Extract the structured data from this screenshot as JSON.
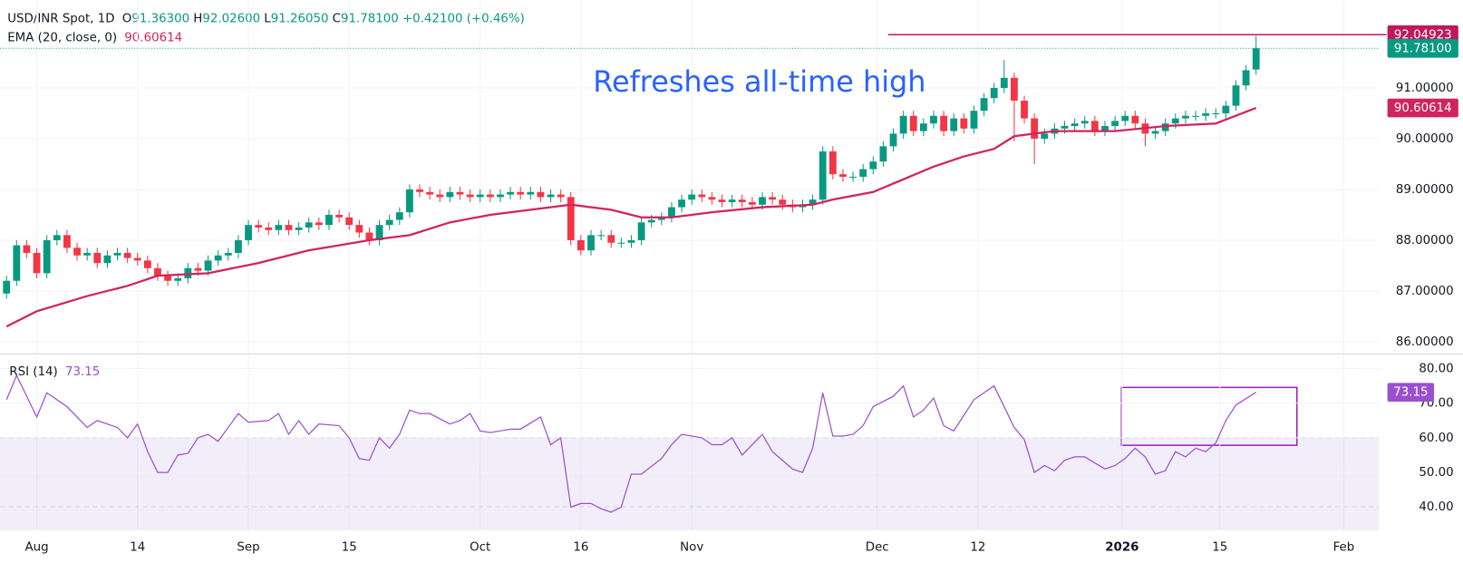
{
  "chart_data": [
    {
      "type": "candlestick",
      "title": "USD/INR Spot, 1D",
      "ohlc_labels": [
        {
          "key": "O",
          "value": "91.36300"
        },
        {
          "key": "H",
          "value": "92.02600"
        },
        {
          "key": "L",
          "value": "91.26050"
        },
        {
          "key": "C",
          "value": "91.78100"
        }
      ],
      "change": "+0.42100 (+0.46%)",
      "up_color": "#089981",
      "down_color": "#f23645",
      "open": [
        86.95,
        87.2,
        87.9,
        87.75,
        87.35,
        88.0,
        88.1,
        87.85,
        87.7,
        87.75,
        87.55,
        87.7,
        87.75,
        87.65,
        87.6,
        87.45,
        87.3,
        87.2,
        87.25,
        87.45,
        87.4,
        87.6,
        87.7,
        87.75,
        88.0,
        88.3,
        88.25,
        88.2,
        88.3,
        88.2,
        88.25,
        88.35,
        88.3,
        88.5,
        88.45,
        88.3,
        88.15,
        88.0,
        88.3,
        88.4,
        88.55,
        89.0,
        88.95,
        88.9,
        88.85,
        88.95,
        88.9,
        88.85,
        88.9,
        88.85,
        88.9,
        88.95,
        88.9,
        88.95,
        88.85,
        88.9,
        88.85,
        88.0,
        87.8,
        88.1,
        88.1,
        87.95,
        87.95,
        88.0,
        88.35,
        88.4,
        88.45,
        88.65,
        88.8,
        88.9,
        88.85,
        88.8,
        88.75,
        88.8,
        88.75,
        88.7,
        88.85,
        88.8,
        88.7,
        88.65,
        88.7,
        88.8,
        89.75,
        89.3,
        89.25,
        89.25,
        89.4,
        89.55,
        89.85,
        90.1,
        90.45,
        90.15,
        90.3,
        90.45,
        90.15,
        90.4,
        90.2,
        90.55,
        90.8,
        91.0,
        91.2,
        90.75,
        90.4,
        90.0,
        90.1,
        90.2,
        90.25,
        90.3,
        90.35,
        90.15,
        90.25,
        90.35,
        90.45,
        90.3,
        90.1,
        90.15,
        90.3,
        90.4,
        90.45,
        90.45,
        90.5,
        90.5,
        90.65,
        91.05,
        91.363
      ],
      "high": [
        87.3,
        88.0,
        88.0,
        87.85,
        88.1,
        88.2,
        88.2,
        87.95,
        87.85,
        87.85,
        87.8,
        87.85,
        87.85,
        87.75,
        87.7,
        87.55,
        87.4,
        87.35,
        87.55,
        87.55,
        87.7,
        87.8,
        87.85,
        88.1,
        88.4,
        88.4,
        88.35,
        88.4,
        88.4,
        88.35,
        88.45,
        88.45,
        88.6,
        88.6,
        88.55,
        88.4,
        88.25,
        88.4,
        88.5,
        88.65,
        89.1,
        89.1,
        89.05,
        89.0,
        89.05,
        89.05,
        89.0,
        89.0,
        89.0,
        89.0,
        89.05,
        89.05,
        89.05,
        89.05,
        89.0,
        89.0,
        88.95,
        88.1,
        88.2,
        88.2,
        88.2,
        88.05,
        88.1,
        88.45,
        88.5,
        88.55,
        88.75,
        88.9,
        89.0,
        89.0,
        88.95,
        88.9,
        88.9,
        88.9,
        88.85,
        88.95,
        88.95,
        88.9,
        88.8,
        88.8,
        88.9,
        89.85,
        89.85,
        89.4,
        89.35,
        89.5,
        89.65,
        89.95,
        90.2,
        90.55,
        90.55,
        90.4,
        90.55,
        90.55,
        90.5,
        90.5,
        90.65,
        90.9,
        91.1,
        91.55,
        91.3,
        90.85,
        90.5,
        90.2,
        90.3,
        90.35,
        90.4,
        90.45,
        90.45,
        90.35,
        90.45,
        90.55,
        90.55,
        90.4,
        90.25,
        90.4,
        90.5,
        90.55,
        90.55,
        90.6,
        90.6,
        90.75,
        91.15,
        91.45,
        92.026
      ],
      "low": [
        86.85,
        87.1,
        87.65,
        87.25,
        87.25,
        87.9,
        87.75,
        87.6,
        87.6,
        87.45,
        87.45,
        87.6,
        87.55,
        87.5,
        87.35,
        87.2,
        87.1,
        87.1,
        87.15,
        87.3,
        87.3,
        87.5,
        87.6,
        87.65,
        87.9,
        88.15,
        88.1,
        88.1,
        88.1,
        88.1,
        88.15,
        88.2,
        88.2,
        88.35,
        88.2,
        88.05,
        87.9,
        87.9,
        88.2,
        88.3,
        88.45,
        88.85,
        88.8,
        88.75,
        88.75,
        88.8,
        88.75,
        88.75,
        88.75,
        88.75,
        88.8,
        88.8,
        88.8,
        88.75,
        88.75,
        88.75,
        87.9,
        87.7,
        87.7,
        88.0,
        87.85,
        87.85,
        87.85,
        87.9,
        88.25,
        88.3,
        88.35,
        88.55,
        88.7,
        88.75,
        88.7,
        88.65,
        88.65,
        88.65,
        88.6,
        88.6,
        88.7,
        88.6,
        88.55,
        88.55,
        88.6,
        88.7,
        89.2,
        89.15,
        89.15,
        89.15,
        89.3,
        89.45,
        89.75,
        90.0,
        90.05,
        90.05,
        90.2,
        90.05,
        90.05,
        90.1,
        90.1,
        90.45,
        90.7,
        90.9,
        89.95,
        90.3,
        89.5,
        89.9,
        90.0,
        90.1,
        90.15,
        90.2,
        90.05,
        90.05,
        90.15,
        90.25,
        90.2,
        89.85,
        90.0,
        90.05,
        90.2,
        90.3,
        90.35,
        90.35,
        90.4,
        90.4,
        90.55,
        90.95,
        91.2605
      ],
      "close": [
        87.2,
        87.9,
        87.75,
        87.35,
        88.0,
        88.1,
        87.85,
        87.7,
        87.75,
        87.55,
        87.7,
        87.75,
        87.65,
        87.6,
        87.45,
        87.3,
        87.2,
        87.25,
        87.45,
        87.4,
        87.6,
        87.7,
        87.75,
        88.0,
        88.3,
        88.25,
        88.2,
        88.3,
        88.2,
        88.25,
        88.35,
        88.3,
        88.5,
        88.45,
        88.3,
        88.15,
        88.0,
        88.3,
        88.4,
        88.55,
        89.0,
        88.95,
        88.9,
        88.85,
        88.95,
        88.9,
        88.85,
        88.9,
        88.85,
        88.9,
        88.95,
        88.9,
        88.95,
        88.85,
        88.9,
        88.85,
        88.0,
        87.8,
        88.1,
        88.1,
        87.95,
        87.95,
        88.0,
        88.35,
        88.4,
        88.45,
        88.65,
        88.8,
        88.9,
        88.85,
        88.8,
        88.75,
        88.8,
        88.75,
        88.7,
        88.85,
        88.8,
        88.7,
        88.65,
        88.7,
        88.8,
        89.75,
        89.3,
        89.25,
        89.25,
        89.4,
        89.55,
        89.85,
        90.1,
        90.45,
        90.15,
        90.3,
        90.45,
        90.15,
        90.4,
        90.2,
        90.55,
        90.8,
        91.0,
        91.2,
        90.75,
        90.4,
        90.0,
        90.1,
        90.2,
        90.25,
        90.3,
        90.35,
        90.15,
        90.25,
        90.35,
        90.45,
        90.3,
        90.1,
        90.15,
        90.3,
        90.4,
        90.45,
        90.45,
        90.5,
        90.5,
        90.65,
        91.05,
        91.35,
        91.781
      ],
      "indicator": {
        "name": "EMA (20, close, 0)",
        "value_label": "90.60614",
        "color": "#d0245e",
        "x": [
          0,
          3,
          8,
          12,
          15,
          20,
          25,
          30,
          36,
          40,
          44,
          48,
          52,
          56,
          60,
          63,
          66,
          70,
          75,
          80,
          82,
          86,
          89,
          92,
          95,
          98,
          100,
          104,
          110,
          115,
          120,
          124
        ],
        "values": [
          86.3,
          86.6,
          86.9,
          87.1,
          87.3,
          87.35,
          87.55,
          87.8,
          88.0,
          88.1,
          88.35,
          88.5,
          88.6,
          88.7,
          88.6,
          88.45,
          88.45,
          88.55,
          88.65,
          88.7,
          88.8,
          88.95,
          89.2,
          89.45,
          89.65,
          89.8,
          90.05,
          90.15,
          90.15,
          90.25,
          90.3,
          90.60614
        ]
      },
      "last_price": {
        "value": 91.781,
        "label": "91.78100"
      },
      "level_line": {
        "value": 92.04923,
        "label": "92.04923",
        "color": "#c2185b"
      },
      "annotation": {
        "text": "Refreshes all-time high",
        "color": "#2962ff"
      },
      "xlim": [
        -0.65,
        136.2
      ],
      "xticks": [
        {
          "value": 3,
          "label": "Aug"
        },
        {
          "value": 13,
          "label": "14"
        },
        {
          "value": 24,
          "label": "Sep"
        },
        {
          "value": 34,
          "label": "15"
        },
        {
          "value": 47,
          "label": "Oct"
        },
        {
          "value": 57,
          "label": "16"
        },
        {
          "value": 68,
          "label": "Nov"
        },
        {
          "value": 86.4,
          "label": "Dec"
        },
        {
          "value": 96.4,
          "label": "12"
        },
        {
          "value": 110.7,
          "label": "2026"
        },
        {
          "value": 120.4,
          "label": "15"
        },
        {
          "value": 132.7,
          "label": "Feb"
        }
      ],
      "ylim": [
        85.78,
        92.73
      ],
      "yticks": [
        {
          "value": 86,
          "label": "86.00000"
        },
        {
          "value": 87,
          "label": "87.00000"
        },
        {
          "value": 88,
          "label": "88.00000"
        },
        {
          "value": 89,
          "label": "89.00000"
        },
        {
          "value": 90,
          "label": "90.00000"
        },
        {
          "value": 91,
          "label": "91.00000"
        }
      ],
      "grid": true
    },
    {
      "type": "line",
      "title": "RSI (14)",
      "value_label": "73.15",
      "color": "#9c4fd0",
      "x": [
        0,
        1,
        3,
        4,
        5,
        6,
        8,
        9,
        11,
        12,
        13,
        14,
        15,
        16,
        17,
        18,
        19,
        20,
        21,
        23,
        24,
        26,
        27,
        28,
        29,
        30,
        31,
        33,
        34,
        35,
        36,
        37,
        38,
        39,
        40,
        41,
        42,
        44,
        45,
        46,
        47,
        48,
        49,
        50,
        51,
        53,
        54,
        55,
        56,
        57,
        58,
        59,
        60,
        61,
        62,
        63,
        65,
        66,
        67,
        68,
        69,
        70,
        71,
        72,
        73,
        75,
        76,
        77,
        78,
        79,
        80,
        81,
        82,
        83,
        84,
        85,
        86,
        88,
        89,
        90,
        91,
        92,
        93,
        94,
        95,
        96,
        97,
        98,
        100,
        101,
        102,
        103,
        104,
        105,
        106,
        107,
        109,
        110,
        111,
        112,
        113,
        114,
        115,
        116,
        117,
        118,
        119,
        120,
        121,
        122,
        124
      ],
      "values": [
        71,
        78,
        66,
        73,
        71,
        69,
        63,
        65,
        63,
        60,
        64,
        56,
        50,
        50,
        55,
        55.5,
        60,
        61,
        59,
        67,
        64.5,
        65,
        67,
        61,
        65,
        61,
        64,
        63.5,
        60,
        54,
        53.5,
        60,
        57,
        61,
        68,
        67,
        67,
        64,
        65,
        67,
        62,
        61.5,
        62,
        62.5,
        62.5,
        66,
        58,
        60,
        40,
        41,
        41,
        39.5,
        38.5,
        40,
        49.5,
        49.5,
        54,
        58,
        61,
        60.5,
        60,
        58,
        58,
        60,
        55,
        61,
        56,
        53.5,
        51,
        50,
        57,
        73,
        60.5,
        60.5,
        61,
        63.5,
        69,
        72,
        75,
        66,
        68,
        71.5,
        63.5,
        62,
        66.5,
        71,
        73,
        75,
        63,
        59.5,
        50,
        52,
        50.5,
        53.5,
        54.5,
        54.5,
        51,
        52,
        54,
        57,
        54.5,
        49.5,
        50.5,
        56,
        54.5,
        57,
        56,
        58.5,
        65,
        69.5,
        73.15
      ],
      "bands": [
        40,
        60
      ],
      "ylim": [
        33.3,
        84
      ],
      "yticks": [
        {
          "value": 40,
          "label": "40.00"
        },
        {
          "value": 50,
          "label": "50.00"
        },
        {
          "value": 60,
          "label": "60.00"
        },
        {
          "value": 70,
          "label": "70.00"
        },
        {
          "value": 80,
          "label": "80.00"
        }
      ],
      "grid": true
    }
  ]
}
